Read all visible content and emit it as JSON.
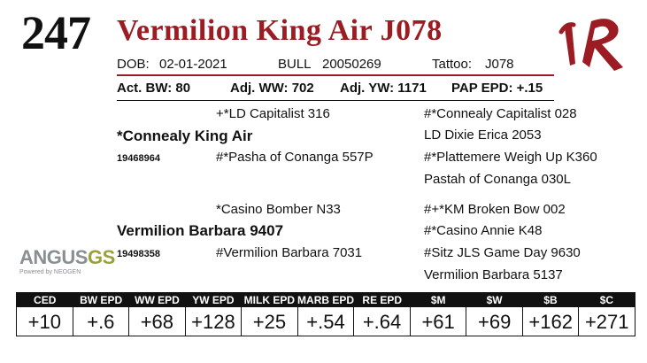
{
  "lot_number": "247",
  "animal_name": "Vermilion King Air J078",
  "info": {
    "dob_label": "DOB:",
    "dob": "02-01-2021",
    "sex": "BULL",
    "reg_number": "20050269",
    "tattoo_label": "Tattoo:",
    "tattoo": "J078"
  },
  "performance": {
    "act_bw": "Act. BW: 80",
    "adj_ww": "Adj. WW: 702",
    "adj_yw": "Adj. YW: 1171",
    "pap_epd": "PAP EPD: +.15"
  },
  "pedigree": {
    "sire": "*Connealy King Air",
    "sire_reg": "19468964",
    "sire_sire": "+*LD Capitalist 316",
    "sire_dam": "#*Pasha of Conanga 557P",
    "sss": "#*Connealy Capitalist 028",
    "ssd": "LD Dixie Erica 2053",
    "sds": "#*Plattemere Weigh Up K360",
    "sdd": "Pastah of Conanga 030L",
    "dam": "Vermilion Barbara 9407",
    "dam_reg": "19498358",
    "dam_sire": "*Casino Bomber N33",
    "dam_dam": "#Vermilion Barbara 7031",
    "dss": "#+*KM Broken Bow 002",
    "dsd": "#*Casino Annie K48",
    "dds": "#Sitz JLS Game Day 9630",
    "ddd": "Vermilion Barbara 5137"
  },
  "logo": {
    "main": "ANGUS",
    "suffix": "GS",
    "powered": "Powered by NEOGEN"
  },
  "epd": {
    "headers": [
      "CED",
      "BW EPD",
      "WW EPD",
      "YW EPD",
      "MILK EPD",
      "MARB EPD",
      "RE EPD",
      "$M",
      "$W",
      "$B",
      "$C"
    ],
    "values": [
      "+10",
      "+.6",
      "+68",
      "+128",
      "+25",
      "+.54",
      "+.64",
      "+61",
      "+69",
      "+162",
      "+271"
    ]
  },
  "colors": {
    "accent": "#9b1c22",
    "logo_gray": "#8a8f94",
    "logo_green": "#9aa13b"
  }
}
